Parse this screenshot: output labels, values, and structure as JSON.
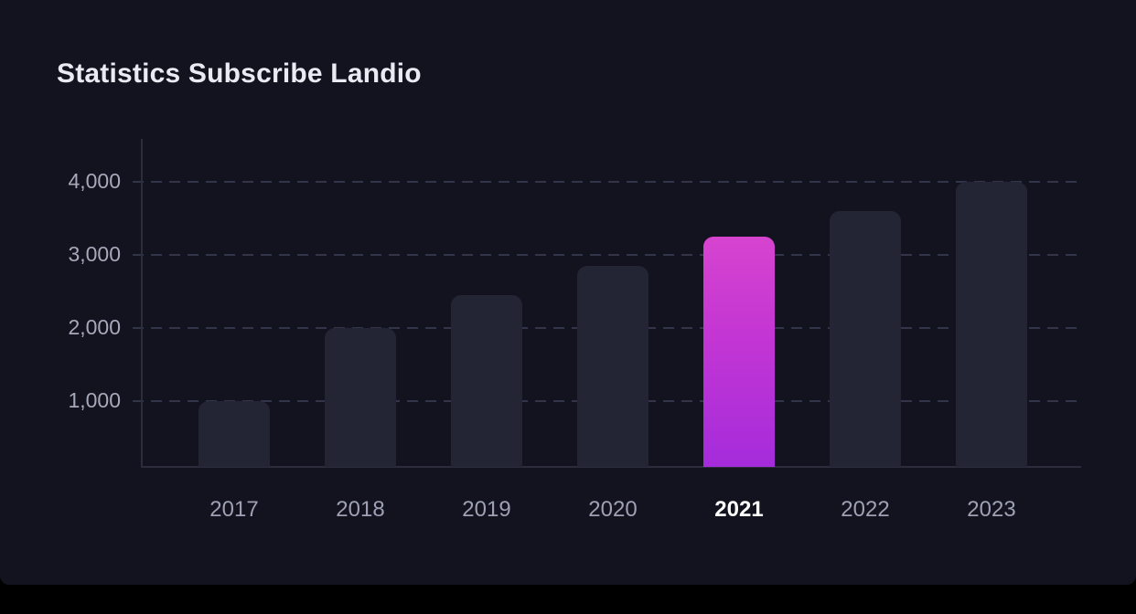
{
  "chart_data": {
    "type": "bar",
    "title": "Statistics Subscribe Landio",
    "categories": [
      "2017",
      "2018",
      "2019",
      "2020",
      "2021",
      "2022",
      "2023"
    ],
    "values": [
      1000,
      2000,
      2450,
      2850,
      3250,
      3600,
      4000
    ],
    "highlighted_category": "2021",
    "y_ticks": [
      {
        "label": "4,000",
        "value": 4000
      },
      {
        "label": "3,000",
        "value": 3000
      },
      {
        "label": "2,000",
        "value": 2000
      },
      {
        "label": "1,000",
        "value": 1000
      }
    ],
    "ylim": [
      0,
      4400
    ],
    "xlabel": "",
    "ylabel": "",
    "grid": "horizontal-dashed",
    "legend": "none",
    "colors": {
      "card_background": "#12131F",
      "bottom_strip": "#000000",
      "bar_default": "#232534",
      "bar_highlight_top": "#D644CF",
      "bar_highlight_bottom": "#A52CDB",
      "gridline": "#32344A",
      "axis_line": "#2B2D3C",
      "y_tick_label": "#A6A9BA",
      "x_label": "#9EA1B4",
      "x_label_active": "#FFFFFF",
      "title": "#E9EAF2"
    }
  }
}
